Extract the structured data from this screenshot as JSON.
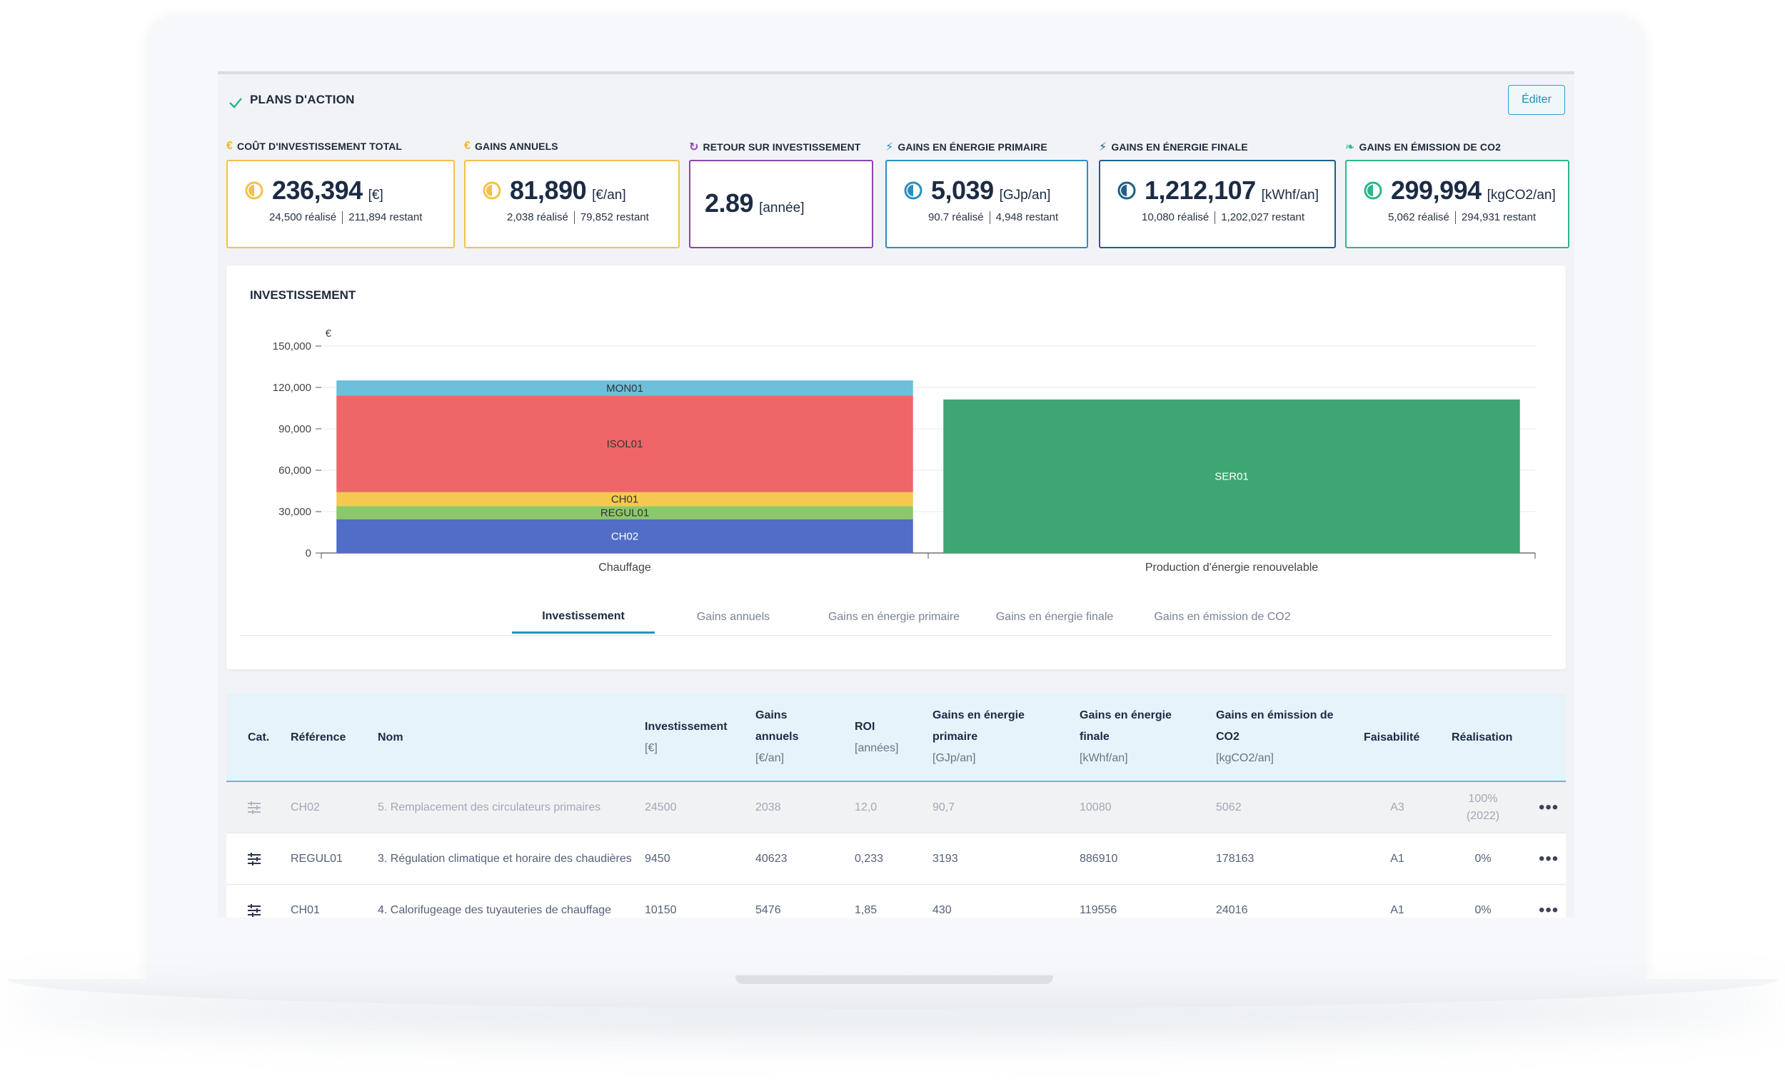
{
  "header": {
    "title": "PLANS D'ACTION",
    "edit_label": "Éditer"
  },
  "kpis": [
    {
      "label": "COÛT D'INVESTISSEMENT TOTAL",
      "icon": "euro-icon",
      "color": "#f2c14a",
      "value": "236,394",
      "unit": "[€]",
      "done": "24,500 réalisé",
      "remaining": "211,894 restant"
    },
    {
      "label": "GAINS ANNUELS",
      "icon": "euro-icon",
      "color": "#f2c14a",
      "value": "81,890",
      "unit": "[€/an]",
      "done": "2,038 réalisé",
      "remaining": "79,852 restant"
    },
    {
      "label": "RETOUR SUR INVESTISSEMENT",
      "icon": "refresh-icon",
      "color": "#8e44ad",
      "value": "2.89",
      "unit": "[année]"
    },
    {
      "label": "GAINS EN ÉNERGIE PRIMAIRE",
      "icon": "bolt-icon",
      "color": "#2a8fc0",
      "value": "5,039",
      "unit": "[GJp/an]",
      "done": "90.7 réalisé",
      "remaining": "4,948 restant"
    },
    {
      "label": "GAINS EN ÉNERGIE FINALE",
      "icon": "bolt-icon",
      "color": "#1f5f8b",
      "value": "1,212,107",
      "unit": "[kWhf/an]",
      "done": "10,080 réalisé",
      "remaining": "1,202,027 restant"
    },
    {
      "label": "GAINS EN ÉMISSION DE CO2",
      "icon": "leaf-icon",
      "color": "#2eb58c",
      "value": "299,994",
      "unit": "[kgCO2/an]",
      "done": "5,062 réalisé",
      "remaining": "294,931 restant"
    }
  ],
  "chart": {
    "title": "INVESTISSEMENT",
    "tabs": [
      "Investissement",
      "Gains annuels",
      "Gains en énergie primaire",
      "Gains en énergie finale",
      "Gains en émission de CO2"
    ],
    "active_tab": 0
  },
  "chart_data": {
    "type": "bar",
    "stacked": true,
    "ylabel": "€",
    "ylim": [
      0,
      150000
    ],
    "yticks": [
      0,
      30000,
      60000,
      90000,
      120000,
      150000
    ],
    "ytick_labels": [
      "0",
      "30,000",
      "60,000",
      "90,000",
      "120,000",
      "150,000"
    ],
    "categories": [
      "Chauffage",
      "Production d'énergie renouvelable"
    ],
    "series": [
      {
        "name": "CH02",
        "color": "#516dc8",
        "values": [
          24500,
          0
        ]
      },
      {
        "name": "REGUL01",
        "color": "#8bc86a",
        "values": [
          9450,
          0
        ]
      },
      {
        "name": "CH01",
        "color": "#f5c94f",
        "values": [
          10150,
          0
        ]
      },
      {
        "name": "ISOL01",
        "color": "#ee6668",
        "values": [
          70000,
          0
        ]
      },
      {
        "name": "MON01",
        "color": "#6dbfdb",
        "values": [
          11000,
          0
        ]
      },
      {
        "name": "SER01",
        "color": "#3ea672",
        "values": [
          0,
          111294
        ]
      }
    ],
    "grid": true
  },
  "table": {
    "headers": [
      {
        "title": "Cat."
      },
      {
        "title": "Référence"
      },
      {
        "title": "Nom"
      },
      {
        "title": "Investissement",
        "unit": "[€]"
      },
      {
        "title": "Gains annuels",
        "unit": "[€/an]"
      },
      {
        "title": "ROI",
        "unit": "[années]"
      },
      {
        "title": "Gains en énergie primaire",
        "unit": "[GJp/an]"
      },
      {
        "title": "Gains en énergie finale",
        "unit": "[kWhf/an]"
      },
      {
        "title": "Gains en émission de CO2",
        "unit": "[kgCO2/an]"
      },
      {
        "title": "Faisabilité"
      },
      {
        "title": "Réalisation"
      }
    ],
    "rows": [
      {
        "ref": "CH02",
        "name": "5. Remplacement des circulateurs primaires",
        "invest": "24500",
        "gains": "2038",
        "roi": "12,0",
        "primary": "90,7",
        "final": "10080",
        "co2": "5062",
        "feas": "A3",
        "real": "100%",
        "real_year": "(2022)",
        "done": true
      },
      {
        "ref": "REGUL01",
        "name": "3. Régulation climatique et horaire des chaudières",
        "invest": "9450",
        "gains": "40623",
        "roi": "0,233",
        "primary": "3193",
        "final": "886910",
        "co2": "178163",
        "feas": "A1",
        "real": "0%",
        "done": false
      },
      {
        "ref": "CH01",
        "name": "4. Calorifugeage des tuyauteries de chauffage",
        "invest": "10150",
        "gains": "5476",
        "roi": "1,85",
        "primary": "430",
        "final": "119556",
        "co2": "24016",
        "feas": "A1",
        "real": "0%",
        "done": false
      }
    ]
  }
}
